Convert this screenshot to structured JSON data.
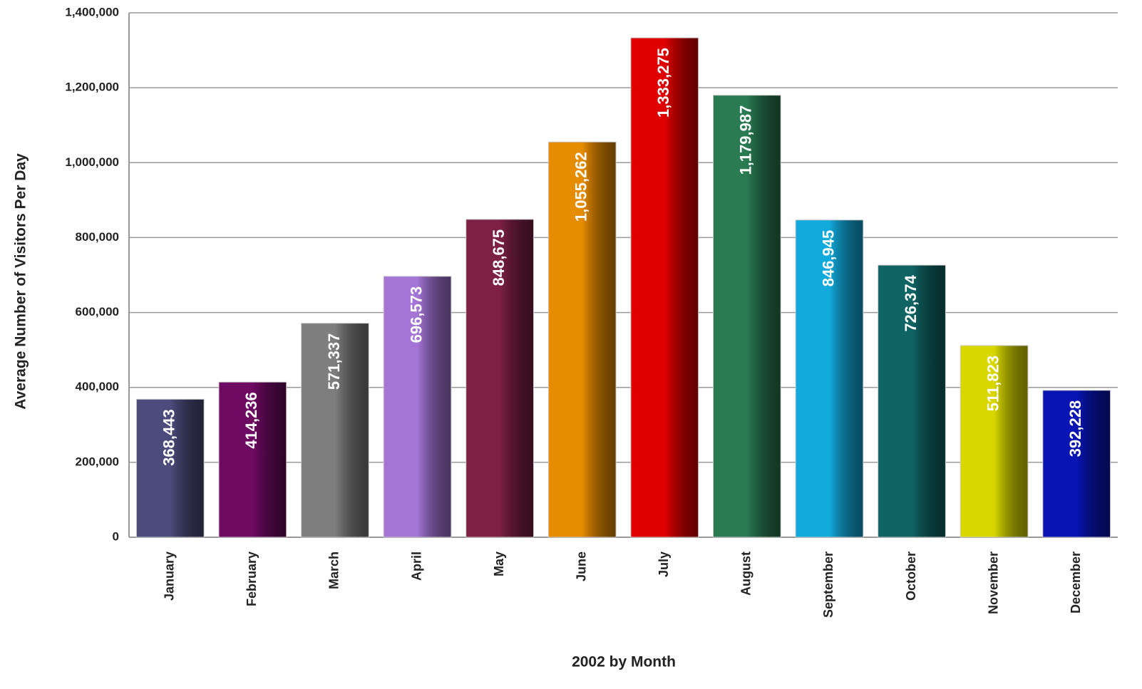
{
  "chart_data": {
    "type": "bar",
    "x_label": "2002 by Month",
    "y_label": "Average Number of Visitors Per Day",
    "categories": [
      "January",
      "February",
      "March",
      "April",
      "May",
      "June",
      "July",
      "August",
      "September",
      "October",
      "November",
      "December"
    ],
    "values": [
      368443,
      414236,
      571337,
      696573,
      848675,
      1055262,
      1333275,
      1179987,
      846945,
      726374,
      511823,
      392228
    ],
    "value_labels": [
      "368,443",
      "414,236",
      "571,337",
      "696,573",
      "848,675",
      "1,055,262",
      "1,333,275",
      "1,179,987",
      "846,945",
      "726,374",
      "511,823",
      "392,228"
    ],
    "colors": [
      "#4c4c7c",
      "#6e0a62",
      "#7e7e7e",
      "#a474d6",
      "#7c2044",
      "#e68c00",
      "#e00000",
      "#2a7a52",
      "#12aadc",
      "#106464",
      "#d8d800",
      "#0814b4"
    ],
    "ylim": [
      0,
      1400000
    ],
    "yticks": [
      0,
      {
        "value": 200000,
        "label": "200,000"
      },
      {
        "value": 400000,
        "label": "400,000"
      },
      {
        "value": 600000,
        "label": "600,000"
      },
      {
        "value": 800000,
        "label": "800,000"
      },
      {
        "value": 1000000,
        "label": "1,000,000"
      },
      {
        "value": 1200000,
        "label": "1,200,000"
      },
      {
        "value": 1400000,
        "label": "1,400,000"
      }
    ],
    "grid": true
  }
}
